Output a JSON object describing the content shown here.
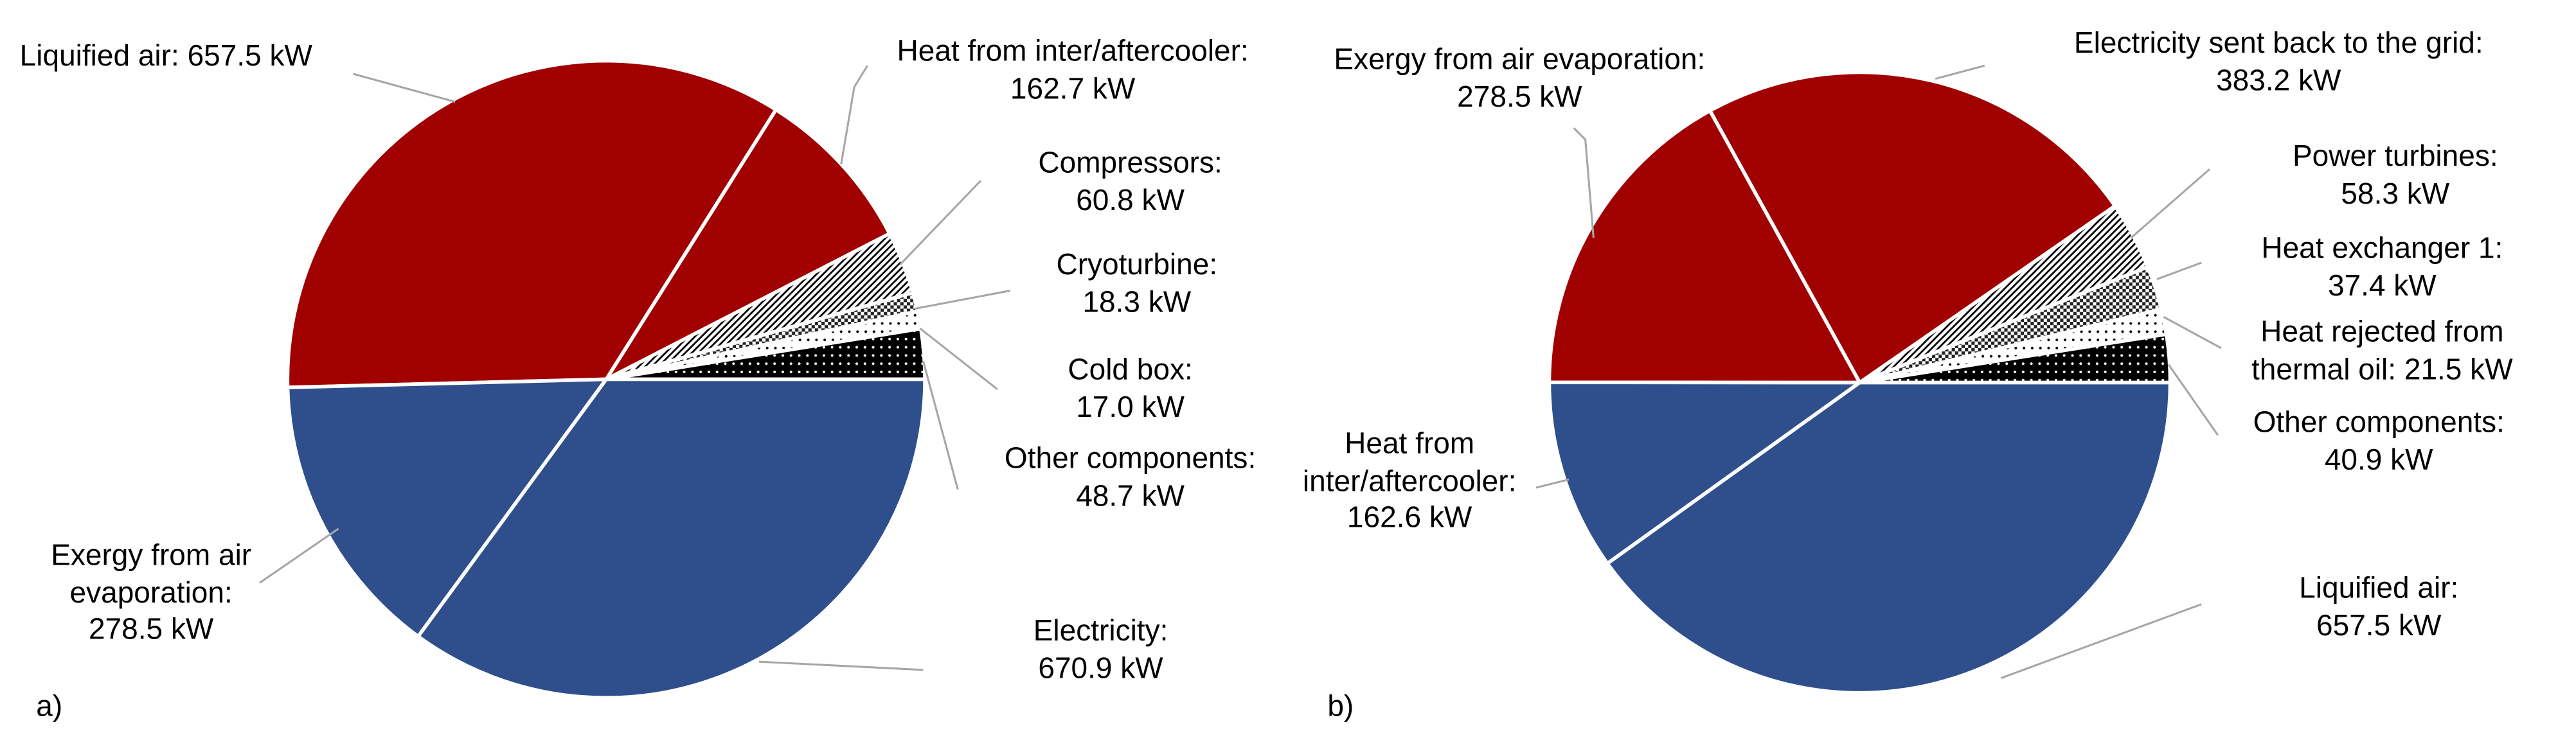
{
  "chart_data": [
    {
      "type": "pie",
      "panel_label": "a)",
      "categories": [
        "Other components:",
        "Cold box:",
        "Cryoturbine:",
        "Compressors:",
        "Heat from inter/aftercooler:",
        "Liquified air:",
        "Exergy from air evaporation:",
        "Electricity:"
      ],
      "values": [
        48.7,
        17.0,
        18.3,
        60.8,
        162.7,
        657.5,
        278.5,
        670.9
      ],
      "value_labels": [
        "48.7 kW",
        "17.0 kW",
        "18.3 kW",
        "60.8 kW",
        "162.7 kW",
        "657.5 kW",
        "278.5 kW",
        "670.9 kW"
      ],
      "colors": [
        "dense-dots",
        "sparse-dots",
        "crosshatch",
        "diagonal",
        "#a00000",
        "#a00000",
        "#2e4f8c",
        "#2e4f8c"
      ]
    },
    {
      "type": "pie",
      "panel_label": "b)",
      "categories": [
        "Other components:",
        "Heat rejected from thermal oil:",
        "Heat exchanger 1:",
        "Power turbines:",
        "Electricity sent back to the grid:",
        "Exergy from air evaporation:",
        "Heat from inter/aftercooler:",
        "Liquified air:"
      ],
      "values": [
        40.9,
        21.5,
        37.4,
        58.3,
        383.2,
        278.5,
        162.6,
        657.5
      ],
      "value_labels": [
        "40.9 kW",
        "21.5 kW",
        "37.4 kW",
        "58.3 kW",
        "383.2 kW",
        "278.5 kW",
        "162.6 kW",
        "657.5 kW"
      ],
      "colors": [
        "dense-dots",
        "sparse-dots",
        "crosshatch",
        "diagonal",
        "#a00000",
        "#a00000",
        "#2e4f8c",
        "#2e4f8c"
      ]
    }
  ]
}
